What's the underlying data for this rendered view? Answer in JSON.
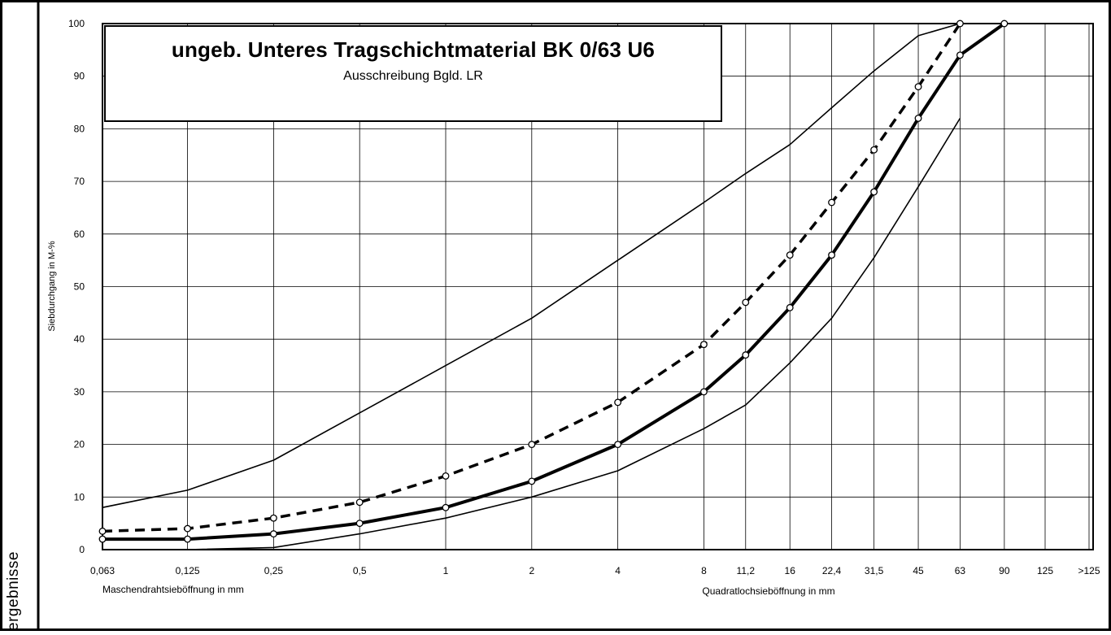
{
  "side_caption": "ergebnisse",
  "chart_data": {
    "type": "line",
    "title": "ungeb. Unteres Tragschichtmaterial BK 0/63 U6",
    "subtitle": "Ausschreibung Bgld. LR",
    "ylabel": "Siebdurchgang in M-%",
    "xlabel_left": "Maschendrahtsieböffnung in mm",
    "xlabel_right": "Quadratlochsieböffnung in mm",
    "ylim": [
      0,
      100
    ],
    "yticks": [
      0,
      10,
      20,
      30,
      40,
      50,
      60,
      70,
      80,
      90,
      100
    ],
    "x_scale": "log",
    "categories": [
      "0,063",
      "0,125",
      "0,25",
      "0,5",
      "1",
      "2",
      "4",
      "8",
      "11,2",
      "16",
      "22,4",
      "31,5",
      "45",
      "63",
      "90",
      "125",
      ">125"
    ],
    "grid": true,
    "series": [
      {
        "style": "thin",
        "x": [
          "0,063",
          "0,125",
          "0,25",
          "0,5",
          "1",
          "2",
          "4",
          "8",
          "11,2",
          "16",
          "22,4",
          "31,5",
          "45",
          "63"
        ],
        "values": [
          8,
          11.3,
          17,
          26,
          35,
          44,
          55,
          66,
          71.5,
          77,
          84,
          91,
          97.7,
          100
        ]
      },
      {
        "style": "dashed",
        "markers": true,
        "x": [
          "0,063",
          "0,125",
          "0,25",
          "0,5",
          "1",
          "2",
          "4",
          "8",
          "11,2",
          "16",
          "22,4",
          "31,5",
          "45",
          "63"
        ],
        "values": [
          3.5,
          4,
          6,
          9,
          14,
          20,
          28,
          39,
          47,
          56,
          66,
          76,
          88,
          100
        ]
      },
      {
        "style": "thick",
        "markers": true,
        "x": [
          "0,063",
          "0,125",
          "0,25",
          "0,5",
          "1",
          "2",
          "4",
          "8",
          "11,2",
          "16",
          "22,4",
          "31,5",
          "45",
          "63",
          "90"
        ],
        "values": [
          2,
          2,
          3,
          5,
          8,
          13,
          20,
          30,
          37,
          46,
          56,
          68,
          82,
          94,
          100
        ]
      },
      {
        "style": "thin",
        "x": [
          "0,125",
          "0,25",
          "0,5",
          "1",
          "2",
          "4",
          "8",
          "11,2",
          "16",
          "22,4",
          "31,5",
          "45",
          "63"
        ],
        "values": [
          0,
          0.4,
          3,
          6,
          10,
          15,
          23,
          27.5,
          35.5,
          44,
          55.5,
          69,
          82
        ]
      }
    ]
  }
}
